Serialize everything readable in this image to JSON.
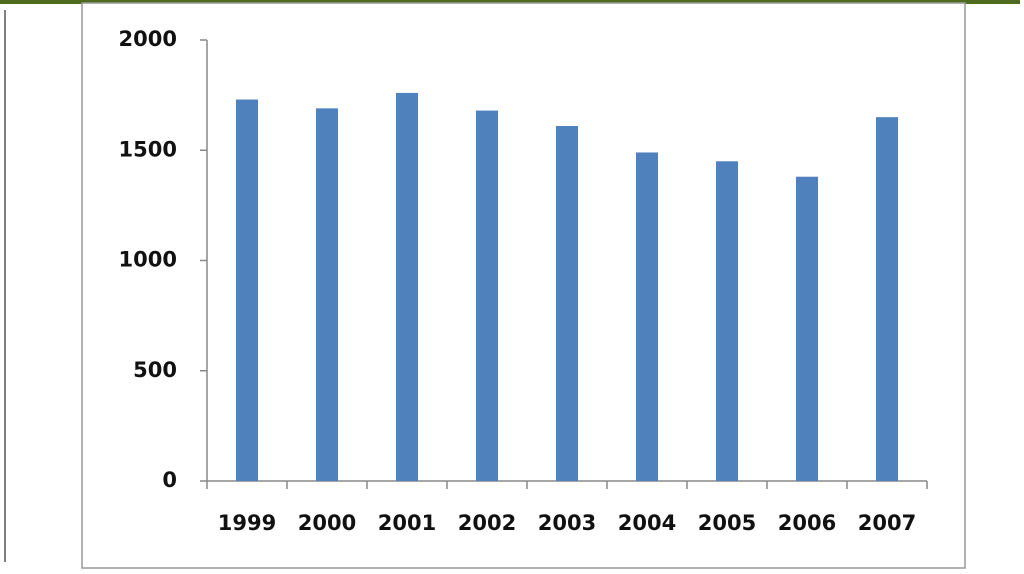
{
  "chart_data": {
    "type": "bar",
    "categories": [
      "1999",
      "2000",
      "2001",
      "2002",
      "2003",
      "2004",
      "2005",
      "2006",
      "2007"
    ],
    "values": [
      1730,
      1690,
      1760,
      1680,
      1610,
      1490,
      1450,
      1380,
      1650
    ],
    "color": "#4f81bd",
    "ylim": [
      0,
      2000
    ],
    "yticks": [
      0,
      500,
      1000,
      1500,
      2000
    ],
    "grid": false
  }
}
